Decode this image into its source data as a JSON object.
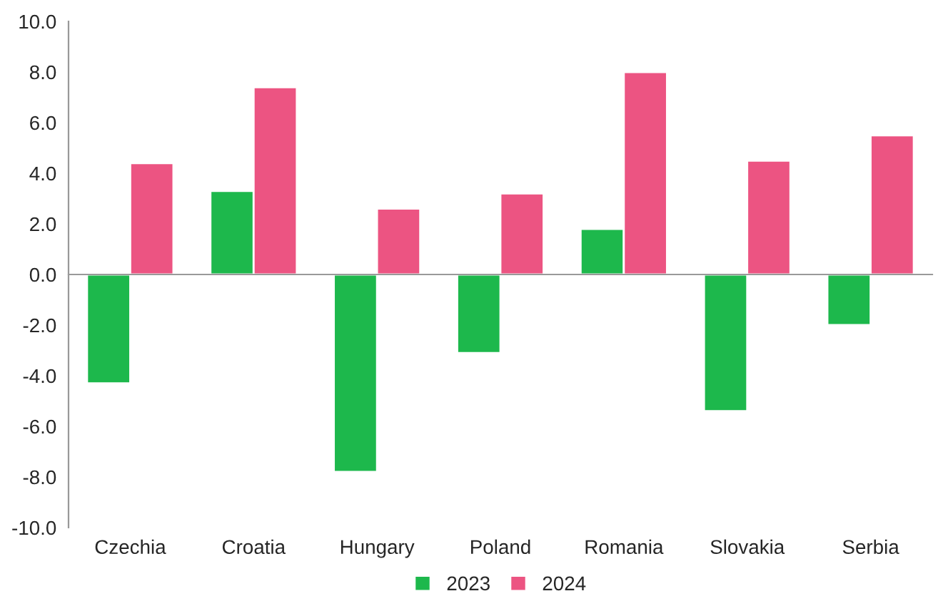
{
  "chart_data": {
    "type": "bar",
    "categories": [
      "Czechia",
      "Croatia",
      "Hungary",
      "Poland",
      "Romania",
      "Slovakia",
      "Serbia"
    ],
    "series": [
      {
        "name": "2023",
        "color": "#1db84c",
        "values": [
          -4.3,
          3.3,
          -7.8,
          -3.1,
          1.8,
          -5.4,
          -2.0
        ]
      },
      {
        "name": "2024",
        "color": "#ec5482",
        "values": [
          4.4,
          7.4,
          2.6,
          3.2,
          8.0,
          4.5,
          5.5
        ]
      }
    ],
    "ylim": [
      -10,
      10
    ],
    "yticks": [
      {
        "value": -10,
        "label": "-10.0"
      },
      {
        "value": -8,
        "label": "-8.0"
      },
      {
        "value": -6,
        "label": "-6.0"
      },
      {
        "value": -4,
        "label": "-4.0"
      },
      {
        "value": -2,
        "label": "-2.0"
      },
      {
        "value": 0,
        "label": "0.0"
      },
      {
        "value": 2,
        "label": "2.0"
      },
      {
        "value": 4,
        "label": "4.0"
      },
      {
        "value": 6,
        "label": "6.0"
      },
      {
        "value": 8,
        "label": "8.0"
      },
      {
        "value": 10,
        "label": "10.0"
      }
    ],
    "legend": "bottom"
  }
}
